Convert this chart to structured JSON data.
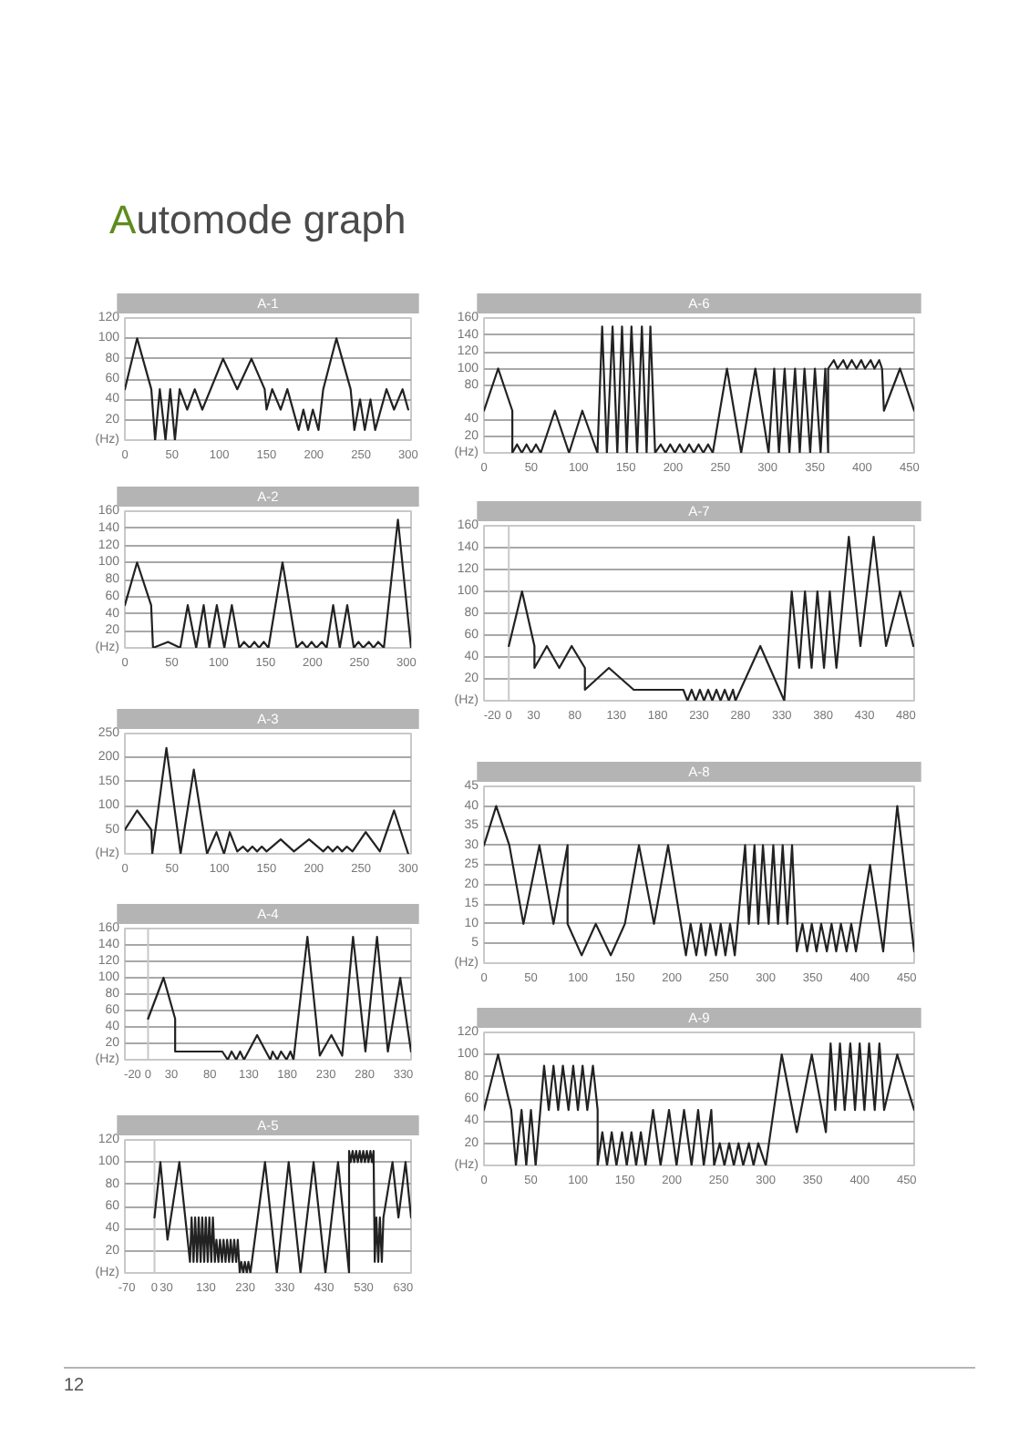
{
  "chart_data": [
    {
      "type": "other",
      "title": "Automode graph",
      "annotations": [
        "12"
      ]
    },
    {
      "type": "line",
      "title": "A-1",
      "ylabel": "(Hz)",
      "color": "#222222",
      "grid": "y",
      "xlim": [
        0,
        303
      ],
      "xticks": [
        0,
        50,
        100,
        150,
        200,
        250,
        300
      ],
      "ylim": [
        0,
        120
      ],
      "yticks": [
        20,
        40,
        60,
        80,
        100,
        120
      ],
      "x": [
        0,
        13,
        28,
        32,
        37,
        43,
        48,
        53,
        58,
        66,
        74,
        82,
        104,
        119,
        134,
        148,
        150,
        156,
        165,
        172,
        184,
        189,
        194,
        199,
        205,
        210,
        224,
        239,
        243,
        249,
        254,
        260,
        265,
        277,
        285,
        294,
        300
      ],
      "values": [
        50,
        100,
        50,
        0,
        50,
        0,
        50,
        0,
        50,
        30,
        50,
        30,
        80,
        50,
        80,
        50,
        30,
        50,
        30,
        50,
        10,
        30,
        10,
        30,
        10,
        50,
        100,
        50,
        10,
        40,
        10,
        40,
        10,
        50,
        30,
        50,
        30
      ]
    },
    {
      "type": "line",
      "title": "A-2",
      "ylabel": "(Hz)",
      "color": "#222222",
      "grid": "y",
      "xlim": [
        0,
        305
      ],
      "xticks": [
        0,
        50,
        100,
        150,
        200,
        250,
        300
      ],
      "ylim": [
        0,
        160
      ],
      "yticks": [
        20,
        40,
        60,
        80,
        100,
        120,
        140,
        160
      ],
      "x": [
        0,
        13,
        28,
        30,
        46,
        59,
        67,
        76,
        84,
        90,
        98,
        106,
        114,
        122,
        127,
        133,
        138,
        143,
        148,
        153,
        168,
        183,
        189,
        194,
        199,
        204,
        210,
        215,
        222,
        229,
        237,
        244,
        249,
        254,
        260,
        265,
        270,
        276,
        291,
        305
      ],
      "values": [
        50,
        100,
        50,
        0,
        7,
        0,
        50,
        0,
        50,
        0,
        50,
        0,
        50,
        0,
        7,
        0,
        7,
        0,
        7,
        0,
        100,
        0,
        7,
        0,
        7,
        0,
        7,
        0,
        50,
        0,
        50,
        0,
        7,
        0,
        7,
        0,
        7,
        0,
        150,
        0
      ]
    },
    {
      "type": "line",
      "title": "A-3",
      "ylabel": "(Hz)",
      "color": "#222222",
      "grid": "y",
      "xlim": [
        0,
        303
      ],
      "xticks": [
        0,
        50,
        100,
        150,
        200,
        250,
        300
      ],
      "ylim": [
        0,
        250
      ],
      "yticks": [
        50,
        100,
        150,
        200,
        250
      ],
      "x": [
        0,
        13,
        28,
        29,
        44,
        59,
        73,
        87,
        97,
        105,
        111,
        119,
        125,
        130,
        135,
        140,
        145,
        150,
        165,
        179,
        195,
        210,
        215,
        220,
        225,
        230,
        235,
        241,
        255,
        270,
        285,
        300
      ],
      "values": [
        50,
        90,
        50,
        0,
        220,
        0,
        175,
        0,
        45,
        0,
        45,
        5,
        15,
        5,
        15,
        5,
        15,
        5,
        30,
        5,
        30,
        5,
        15,
        5,
        15,
        5,
        15,
        5,
        45,
        5,
        90,
        0
      ]
    },
    {
      "type": "line",
      "title": "A-4",
      "ylabel": "(Hz)",
      "color": "#222222",
      "grid": "y",
      "xlim": [
        -30,
        340
      ],
      "xticks": [
        -20,
        0,
        30,
        80,
        130,
        180,
        230,
        280,
        330
      ],
      "ylim": [
        0,
        160
      ],
      "yticks": [
        20,
        40,
        60,
        80,
        100,
        120,
        140,
        160
      ],
      "ref_lines": [
        {
          "axis": "x",
          "value": 0,
          "color": "#c8c8c8"
        }
      ],
      "x": [
        0,
        20,
        35,
        35,
        96,
        103,
        108,
        114,
        119,
        124,
        141,
        158,
        161,
        167,
        172,
        179,
        184,
        188,
        206,
        222,
        237,
        251,
        265,
        281,
        296,
        310,
        326,
        340
      ],
      "values": [
        50,
        100,
        50,
        10,
        10,
        0,
        10,
        0,
        10,
        0,
        30,
        0,
        10,
        0,
        10,
        0,
        10,
        0,
        150,
        5,
        30,
        5,
        150,
        10,
        150,
        10,
        100,
        10
      ]
    },
    {
      "type": "line",
      "title": "A-5",
      "ylabel": "(Hz)",
      "color": "#222222",
      "grid": "y",
      "xlim": [
        -75,
        650
      ],
      "xticks": [
        -70,
        0,
        30,
        130,
        230,
        330,
        430,
        530,
        630
      ],
      "ylim": [
        0,
        120
      ],
      "yticks": [
        20,
        40,
        60,
        80,
        100,
        120
      ],
      "ref_lines": [
        {
          "axis": "x",
          "value": 0,
          "color": "#c8c8c8"
        }
      ],
      "x": [
        0,
        15,
        33,
        63,
        90,
        94,
        99,
        103,
        108,
        112,
        117,
        121,
        126,
        130,
        135,
        139,
        144,
        148,
        153,
        157,
        162,
        166,
        171,
        175,
        180,
        184,
        189,
        193,
        198,
        202,
        207,
        211,
        216,
        220,
        225,
        229,
        234,
        238,
        243,
        280,
        310,
        340,
        370,
        403,
        433,
        465,
        493,
        493,
        497,
        502,
        506,
        511,
        515,
        520,
        524,
        529,
        533,
        538,
        542,
        547,
        551,
        555,
        558,
        562,
        567,
        571,
        576,
        580,
        603,
        618,
        636,
        650
      ],
      "values": [
        50,
        100,
        30,
        100,
        10,
        50,
        10,
        50,
        10,
        50,
        10,
        50,
        10,
        50,
        10,
        50,
        10,
        50,
        10,
        30,
        10,
        30,
        10,
        30,
        10,
        30,
        10,
        30,
        10,
        30,
        10,
        30,
        0,
        10,
        0,
        10,
        0,
        10,
        0,
        100,
        0,
        100,
        0,
        100,
        0,
        100,
        0,
        110,
        100,
        110,
        100,
        110,
        100,
        110,
        100,
        110,
        100,
        110,
        100,
        110,
        100,
        110,
        10,
        50,
        10,
        50,
        10,
        50,
        100,
        50,
        100,
        50
      ]
    },
    {
      "type": "line",
      "title": "A-6",
      "ylabel": "(Hz)",
      "color": "#222222",
      "grid": "y",
      "xlim": [
        0,
        455
      ],
      "xticks": [
        0,
        50,
        100,
        150,
        200,
        250,
        300,
        350,
        400,
        450
      ],
      "ylim": [
        0,
        160
      ],
      "yticks": [
        20,
        40,
        80,
        100,
        120,
        140,
        160
      ],
      "x": [
        0,
        15,
        30,
        30,
        35,
        40,
        45,
        50,
        55,
        60,
        75,
        90,
        104,
        120,
        125,
        130,
        136,
        141,
        146,
        151,
        156,
        162,
        167,
        172,
        176,
        181,
        187,
        192,
        197,
        202,
        207,
        212,
        217,
        222,
        227,
        232,
        237,
        242,
        257,
        272,
        287,
        301,
        307,
        312,
        318,
        323,
        329,
        334,
        339,
        345,
        350,
        356,
        361,
        364,
        364,
        370,
        374,
        380,
        384,
        389,
        394,
        399,
        403,
        409,
        413,
        418,
        421,
        423,
        440,
        455
      ],
      "values": [
        50,
        100,
        50,
        0,
        10,
        0,
        10,
        0,
        10,
        0,
        50,
        0,
        50,
        0,
        150,
        0,
        150,
        0,
        150,
        0,
        150,
        0,
        150,
        0,
        150,
        0,
        10,
        0,
        10,
        0,
        10,
        0,
        10,
        0,
        10,
        0,
        10,
        0,
        100,
        0,
        100,
        0,
        100,
        0,
        100,
        0,
        100,
        0,
        100,
        0,
        100,
        0,
        100,
        0,
        100,
        110,
        100,
        110,
        100,
        110,
        100,
        110,
        100,
        110,
        100,
        110,
        100,
        50,
        100,
        50
      ]
    },
    {
      "type": "line",
      "title": "A-7",
      "ylabel": "(Hz)",
      "color": "#222222",
      "grid": "y",
      "xlim": [
        -30,
        490
      ],
      "xticks": [
        -20,
        0,
        30,
        80,
        130,
        180,
        230,
        280,
        330,
        380,
        430,
        480
      ],
      "ylim": [
        0,
        160
      ],
      "yticks": [
        20,
        40,
        60,
        80,
        100,
        120,
        140,
        160
      ],
      "ref_lines": [
        {
          "axis": "x",
          "value": 0,
          "color": "#c8c8c8"
        }
      ],
      "x": [
        0,
        16,
        31,
        31,
        46,
        61,
        76,
        92,
        92,
        121,
        151,
        211,
        216,
        221,
        226,
        231,
        236,
        241,
        246,
        251,
        256,
        261,
        266,
        271,
        274,
        304,
        333,
        342,
        351,
        358,
        366,
        373,
        381,
        388,
        396,
        411,
        425,
        441,
        456,
        473,
        489
      ],
      "values": [
        50,
        100,
        50,
        30,
        50,
        30,
        50,
        30,
        10,
        30,
        10,
        10,
        0,
        10,
        0,
        10,
        0,
        10,
        0,
        10,
        0,
        10,
        0,
        10,
        0,
        50,
        0,
        100,
        30,
        100,
        30,
        100,
        30,
        100,
        30,
        150,
        50,
        150,
        50,
        100,
        50
      ]
    },
    {
      "type": "line",
      "title": "A-8",
      "ylabel": "(Hz)",
      "color": "#222222",
      "grid": "y",
      "xlim": [
        0,
        458
      ],
      "xticks": [
        0,
        50,
        100,
        150,
        200,
        250,
        300,
        350,
        400,
        450
      ],
      "ylim": [
        0,
        45
      ],
      "yticks": [
        5,
        10,
        15,
        20,
        25,
        30,
        35,
        40,
        45
      ],
      "x": [
        0,
        13,
        27,
        42,
        59,
        74,
        89,
        89,
        104,
        119,
        135,
        150,
        165,
        181,
        196,
        215,
        220,
        226,
        231,
        236,
        241,
        247,
        252,
        257,
        262,
        267,
        278,
        282,
        288,
        292,
        297,
        303,
        308,
        313,
        318,
        323,
        328,
        333,
        339,
        344,
        349,
        354,
        359,
        365,
        370,
        375,
        380,
        386,
        391,
        396,
        411,
        425,
        440,
        458
      ],
      "values": [
        30,
        40,
        30,
        10,
        30,
        10,
        30,
        10,
        2,
        10,
        2,
        10,
        30,
        10,
        30,
        2,
        10,
        2,
        10,
        2,
        10,
        2,
        10,
        2,
        10,
        2,
        30,
        10,
        30,
        10,
        30,
        10,
        30,
        10,
        30,
        10,
        30,
        3,
        10,
        3,
        10,
        3,
        10,
        3,
        10,
        3,
        10,
        3,
        10,
        3,
        25,
        3,
        40,
        3
      ]
    },
    {
      "type": "line",
      "title": "A-9",
      "ylabel": "(Hz)",
      "color": "#222222",
      "grid": "y",
      "xlim": [
        0,
        458
      ],
      "xticks": [
        0,
        50,
        100,
        150,
        200,
        250,
        300,
        350,
        400,
        450
      ],
      "ylim": [
        0,
        120
      ],
      "yticks": [
        20,
        40,
        60,
        80,
        100,
        120
      ],
      "x": [
        0,
        15,
        29,
        34,
        40,
        45,
        50,
        55,
        64,
        69,
        74,
        79,
        84,
        90,
        95,
        100,
        105,
        110,
        116,
        121,
        121,
        126,
        131,
        136,
        141,
        147,
        152,
        157,
        162,
        167,
        172,
        180,
        188,
        197,
        205,
        213,
        221,
        228,
        234,
        242,
        245,
        251,
        256,
        261,
        266,
        271,
        276,
        282,
        287,
        292,
        300,
        317,
        333,
        349,
        364,
        369,
        374,
        379,
        384,
        390,
        395,
        400,
        405,
        410,
        416,
        421,
        426,
        440,
        458
      ],
      "values": [
        50,
        100,
        50,
        0,
        50,
        0,
        50,
        0,
        90,
        50,
        90,
        50,
        90,
        50,
        90,
        50,
        90,
        50,
        90,
        50,
        0,
        30,
        0,
        30,
        0,
        30,
        0,
        30,
        0,
        30,
        0,
        50,
        0,
        50,
        0,
        50,
        0,
        50,
        0,
        50,
        0,
        20,
        0,
        20,
        0,
        20,
        0,
        20,
        0,
        20,
        0,
        100,
        30,
        100,
        30,
        110,
        50,
        110,
        50,
        110,
        50,
        110,
        50,
        110,
        50,
        110,
        50,
        100,
        50
      ]
    }
  ]
}
